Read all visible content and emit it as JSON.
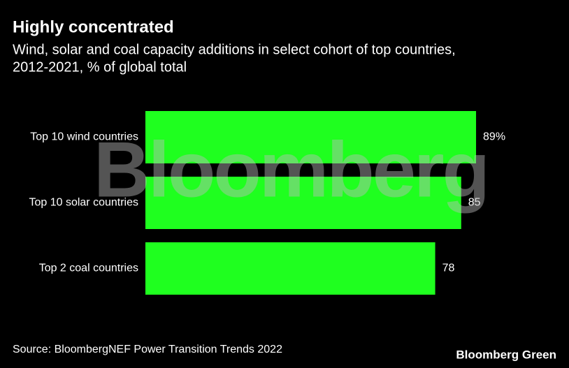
{
  "chart_data": {
    "type": "bar",
    "orientation": "horizontal",
    "title": "Highly concentrated",
    "subtitle": [
      "Wind, solar and coal capacity additions in select cohort of top countries,",
      "2012-2021, % of global total"
    ],
    "categories": [
      "Top 10 wind countries",
      "Top 10 solar countries",
      "Top 2 coal countries"
    ],
    "values": [
      89,
      85,
      78
    ],
    "value_labels": [
      "89%",
      "85",
      "78"
    ],
    "color": "#1fff1f",
    "xlim": [
      0,
      100
    ],
    "source": "Source: BloombergNEF Power Transition Trends 2022",
    "watermark": "Bloomberg",
    "logo": "Bloomberg Green"
  }
}
